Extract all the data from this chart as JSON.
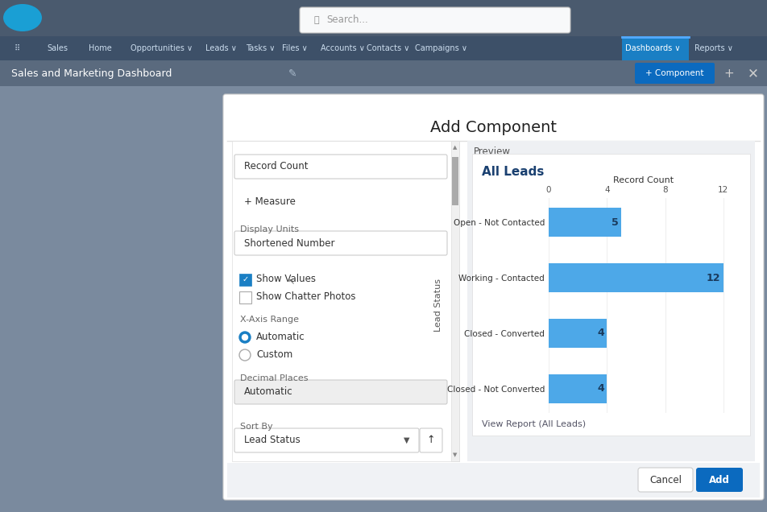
{
  "bg_dark": "#8a9ab0",
  "bg_overlay": "#7a8a9e",
  "nav_top_bg": "#4a5a6e",
  "nav_menu_bg": "#3d5068",
  "title_bar_bg": "#5a6a7e",
  "modal_bg": "#f5f6f8",
  "modal_title": "Add Component",
  "preview_title": "Preview",
  "chart_title": "All Leads",
  "chart_xlabel": "Record Count",
  "chart_ylabel": "Lead Status",
  "categories": [
    "Open - Not Contacted",
    "Working - Contacted",
    "Closed - Converted",
    "Closed - Not Converted"
  ],
  "values": [
    5,
    12,
    4,
    4
  ],
  "bar_color": "#4da8e8",
  "xlim": [
    0,
    13
  ],
  "xticks": [
    0,
    4,
    8,
    12
  ],
  "view_report_text": "View Report (All Leads)",
  "salesforce_blue": "#1a9fd4",
  "dashboards_active_bg": "#1a7fc4",
  "component_btn_color": "#0b6abf",
  "add_btn_color": "#0b6abf",
  "white": "#ffffff",
  "light_grey": "#e8eaed",
  "medium_grey": "#cccccc",
  "dark_text": "#333333",
  "label_text": "#666666",
  "preview_bg": "#eef0f3",
  "chart_bg": "#ffffff"
}
